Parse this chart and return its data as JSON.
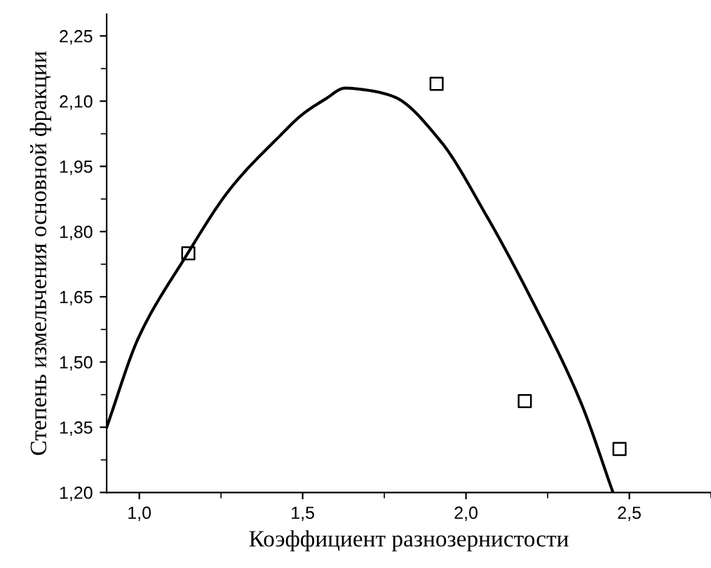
{
  "chart_data": {
    "type": "scatter",
    "xlabel": "Коэффициент разнозернистости",
    "ylabel": "Степень измельчения основной фракции",
    "xlim": [
      0.9,
      2.75
    ],
    "ylim": [
      1.2,
      2.3
    ],
    "xticks": [
      {
        "value": 1.0,
        "label": "1,0"
      },
      {
        "value": 1.5,
        "label": "1,5"
      },
      {
        "value": 2.0,
        "label": "2,0"
      },
      {
        "value": 2.5,
        "label": "2,5"
      }
    ],
    "yticks": [
      {
        "value": 1.2,
        "label": "1,20"
      },
      {
        "value": 1.35,
        "label": "1,35"
      },
      {
        "value": 1.5,
        "label": "1,50"
      },
      {
        "value": 1.65,
        "label": "1,65"
      },
      {
        "value": 1.8,
        "label": "1,80"
      },
      {
        "value": 1.95,
        "label": "1,95"
      },
      {
        "value": 2.1,
        "label": "2,10"
      },
      {
        "value": 2.25,
        "label": "2,25"
      }
    ],
    "grid": false,
    "legend": false,
    "series": [
      {
        "color": "#000000",
        "marker": "square",
        "x": [
          1.15,
          1.91,
          2.18,
          2.47
        ],
        "values": [
          1.75,
          2.14,
          1.41,
          1.3
        ]
      },
      {
        "type": "line",
        "color": "#000000",
        "marker": "none",
        "line_style": "solid",
        "x": [
          0.9,
          1.0,
          1.14,
          1.28,
          1.43,
          1.5,
          1.57,
          1.63,
          1.7,
          1.78,
          1.92,
          2.06,
          2.2,
          2.35,
          2.45
        ],
        "values": [
          1.35,
          1.56,
          1.74,
          1.9,
          2.02,
          2.07,
          2.105,
          2.13,
          2.125,
          2.11,
          2.01,
          1.84,
          1.645,
          1.41,
          1.2
        ]
      }
    ]
  }
}
